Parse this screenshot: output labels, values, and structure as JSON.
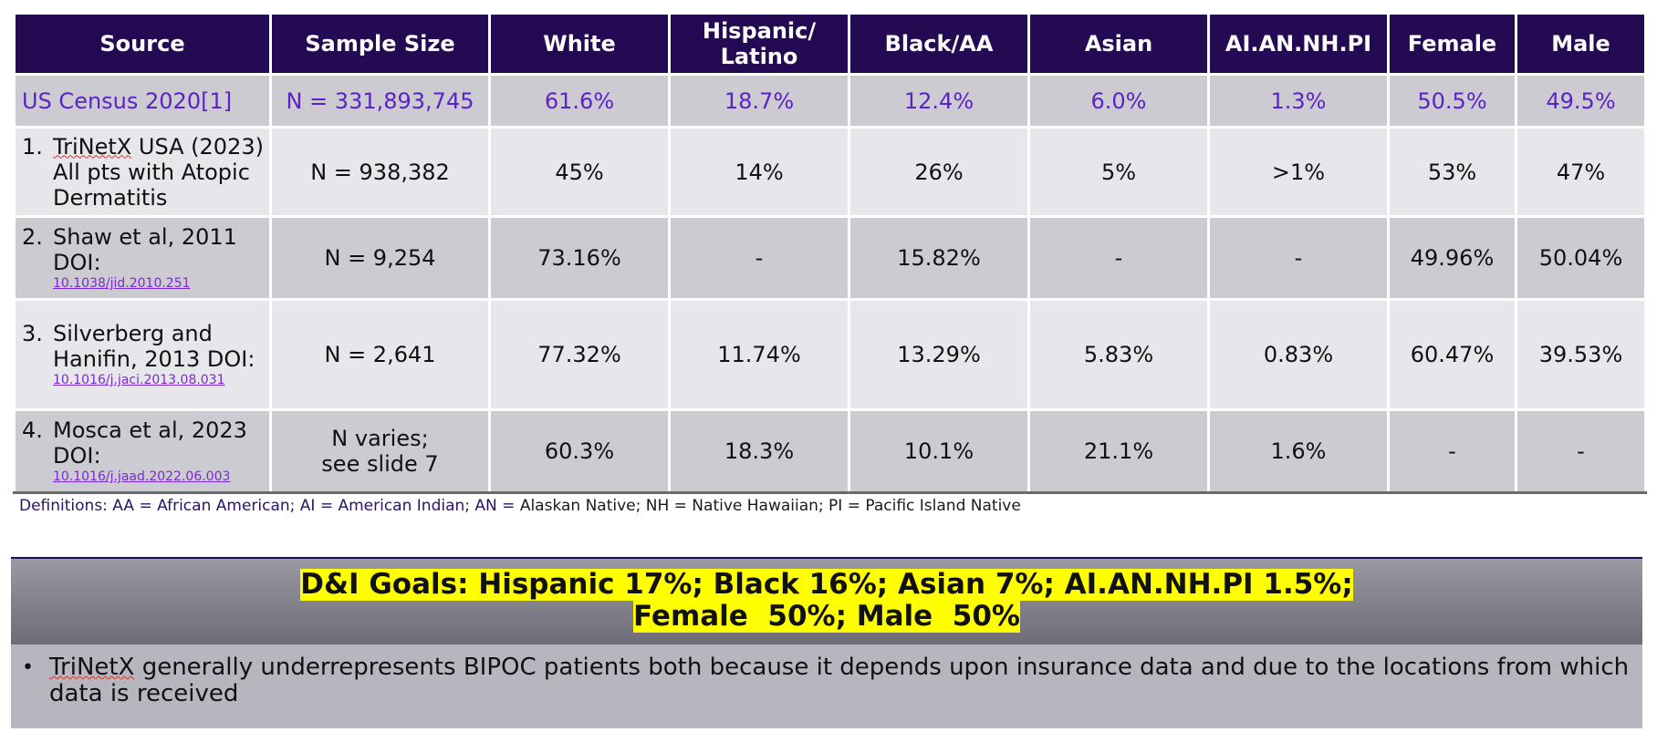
{
  "table": {
    "headers": [
      "Source",
      "Sample Size",
      "White",
      "Hispanic/\nLatino",
      "Black/AA",
      "Asian",
      "AI.AN.NH.PI",
      "Female",
      "Male"
    ],
    "census": [
      "US Census 2020[1]",
      "N = 331,893,745",
      "61.6%",
      "18.7%",
      "12.4%",
      "6.0%",
      "1.3%",
      "50.5%",
      "49.5%"
    ],
    "rows": [
      {
        "num": "1.",
        "source_prefix": "TriNetX",
        "source_rest": " USA (2023) All pts with Atopic Dermatitis",
        "doi": "",
        "cells": [
          "N = 938,382",
          "45%",
          "14%",
          "26%",
          "5%",
          ">1%",
          "53%",
          "47%"
        ]
      },
      {
        "num": "2.",
        "source_prefix": "",
        "source_rest": "Shaw et al, 2011 DOI:",
        "doi": "10.1038/jid.2010.251",
        "cells": [
          "N = 9,254",
          "73.16%",
          "-",
          "15.82%",
          "-",
          "-",
          "49.96%",
          "50.04%"
        ]
      },
      {
        "num": "3.",
        "source_prefix": "",
        "source_rest": "Silverberg and Hanifin, 2013 DOI:",
        "doi": "10.1016/j.jaci.2013.08.031",
        "cells": [
          "N = 2,641",
          "77.32%",
          "11.74%",
          "13.29%",
          "5.83%",
          "0.83%",
          "60.47%",
          "39.53%"
        ]
      },
      {
        "num": "4.",
        "source_prefix": "",
        "source_rest": "Mosca et al, 2023 DOI:",
        "doi": "10.1016/j.jaad.2022.06.003",
        "cells": [
          "N varies;\nsee slide 7",
          "60.3%",
          "18.3%",
          "10.1%",
          "21.1%",
          "1.6%",
          "-",
          "-"
        ]
      }
    ]
  },
  "definitions_left": "Definitions: AA = African American; AI = American Indian; AN = ",
  "definitions_right": "Alaskan Native; NH = Native Hawaiian; PI = Pacific Island Native",
  "goals_line1": "D&I Goals: Hispanic 17%; Black 16%; Asian 7%; AI.AN.NH.PI 1.5%;",
  "goals_line2": "Female  50%; Male  50%",
  "note_prefix": "TriNetX",
  "note_rest": " generally underrepresents BIPOC patients both because it depends upon insurance data and due to the locations from which data is received",
  "colors": {
    "header_bg": "#230a52",
    "census_text": "#5b23c6",
    "highlight": "#ffff00"
  }
}
